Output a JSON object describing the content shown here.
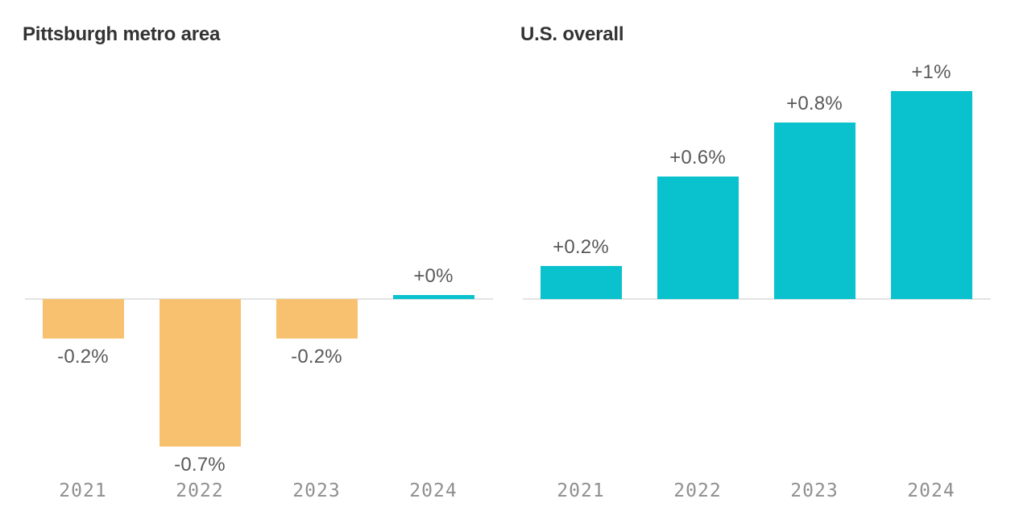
{
  "figure": {
    "background": "#ffffff"
  },
  "colors": {
    "positive_bar": "#0AC2CD",
    "negative_bar": "#F7C170",
    "axis_line": "#E3E3E3",
    "title_text": "#333333",
    "value_label_text": "#59595B",
    "year_label_text": "#909090"
  },
  "chart_data": [
    {
      "type": "bar",
      "title": "Pittsburgh metro area",
      "categories": [
        "2021",
        "2022",
        "2023",
        "2024"
      ],
      "values": [
        -0.2,
        -0.7,
        -0.2,
        0
      ],
      "data_labels": [
        "-0.2%",
        "-0.7%",
        "-0.2%",
        "+0%"
      ],
      "plot_values": [
        -0.19,
        -0.71,
        -0.19,
        0.02
      ],
      "bar_colors": [
        "#F7C170",
        "#F7C170",
        "#F7C170",
        "#0AC2CD"
      ],
      "unit": "%",
      "ylabel": "",
      "xlabel": "",
      "baseline": 0,
      "grid": false,
      "legend": false,
      "axes_shown": "x-baseline-only"
    },
    {
      "type": "bar",
      "title": "U.S. overall",
      "categories": [
        "2021",
        "2022",
        "2023",
        "2024"
      ],
      "values": [
        0.2,
        0.6,
        0.8,
        1.0
      ],
      "data_labels": [
        "+0.2%",
        "+0.6%",
        "+0.8%",
        "+1%"
      ],
      "plot_values": [
        0.16,
        0.59,
        0.85,
        1.0
      ],
      "bar_colors": [
        "#0AC2CD",
        "#0AC2CD",
        "#0AC2CD",
        "#0AC2CD"
      ],
      "unit": "%",
      "ylabel": "",
      "xlabel": "",
      "baseline": 0,
      "grid": false,
      "legend": false,
      "axes_shown": "x-baseline-only"
    }
  ]
}
